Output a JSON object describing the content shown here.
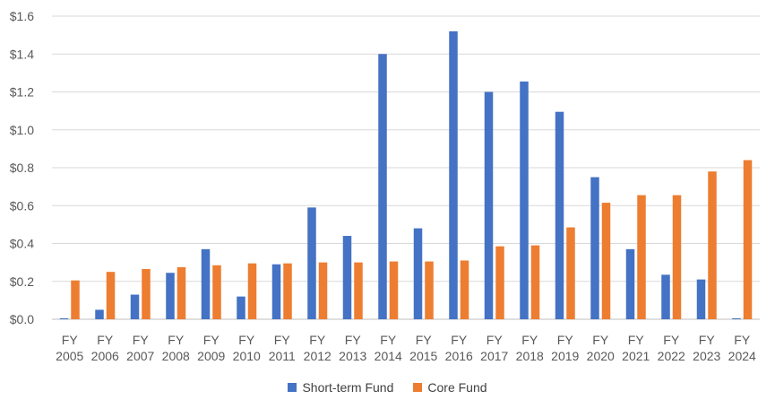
{
  "chart_data": {
    "type": "bar",
    "categories": [
      [
        "FY",
        "2005"
      ],
      [
        "FY",
        "2006"
      ],
      [
        "FY",
        "2007"
      ],
      [
        "FY",
        "2008"
      ],
      [
        "FY",
        "2009"
      ],
      [
        "FY",
        "2010"
      ],
      [
        "FY",
        "2011"
      ],
      [
        "FY",
        "2012"
      ],
      [
        "FY",
        "2013"
      ],
      [
        "FY",
        "2014"
      ],
      [
        "FY",
        "2015"
      ],
      [
        "FY",
        "2016"
      ],
      [
        "FY",
        "2017"
      ],
      [
        "FY",
        "2018"
      ],
      [
        "FY",
        "2019"
      ],
      [
        "FY",
        "2020"
      ],
      [
        "FY",
        "2021"
      ],
      [
        "FY",
        "2022"
      ],
      [
        "FY",
        "2023"
      ],
      [
        "FY",
        "2024"
      ]
    ],
    "series": [
      {
        "name": "Short-term Fund",
        "color": "#4472C4",
        "values": [
          0.005,
          0.05,
          0.13,
          0.245,
          0.37,
          0.12,
          0.29,
          0.59,
          0.44,
          1.4,
          0.48,
          1.52,
          1.2,
          1.255,
          1.095,
          0.75,
          0.37,
          0.235,
          0.21,
          0.005
        ]
      },
      {
        "name": "Core Fund",
        "color": "#ED7D31",
        "values": [
          0.205,
          0.25,
          0.265,
          0.275,
          0.285,
          0.295,
          0.295,
          0.3,
          0.3,
          0.305,
          0.305,
          0.31,
          0.385,
          0.39,
          0.485,
          0.615,
          0.655,
          0.655,
          0.78,
          0.84
        ]
      }
    ],
    "ylim": [
      0,
      1.6
    ],
    "yticks": [
      0,
      0.2,
      0.4,
      0.6,
      0.8,
      1.0,
      1.2,
      1.4,
      1.6
    ],
    "ytick_labels": [
      "$0.0",
      "$0.2",
      "$0.4",
      "$0.6",
      "$0.8",
      "$1.0",
      "$1.2",
      "$1.4",
      "$1.6"
    ],
    "grid": true,
    "legend_position": "bottom",
    "title": "",
    "xlabel": "",
    "ylabel": ""
  }
}
